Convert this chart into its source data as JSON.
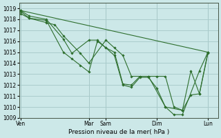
{
  "background_color": "#cce8e8",
  "grid_color": "#aacccc",
  "line_color": "#2d6e2d",
  "marker_color": "#2d6e2d",
  "xlabel": "Pression niveau de la mer( hPa )",
  "ylim": [
    1009,
    1019.5
  ],
  "yticks": [
    1009,
    1010,
    1011,
    1012,
    1013,
    1014,
    1015,
    1016,
    1017,
    1018,
    1019
  ],
  "xtick_labels": [
    "Ven",
    "Mar",
    "Sam",
    "Dim",
    "Lun"
  ],
  "xtick_positions": [
    0.0,
    4.0,
    5.0,
    8.0,
    11.0
  ],
  "xlim": [
    -0.1,
    11.6
  ],
  "lines": [
    {
      "x": [
        0.0,
        11.0
      ],
      "y": [
        1018.8,
        1015.0
      ]
    },
    {
      "x": [
        0.0,
        0.5,
        1.5,
        2.5,
        3.0,
        4.0,
        4.5,
        5.0,
        5.5,
        6.0,
        6.5,
        7.0,
        7.5,
        8.0,
        8.5,
        9.0,
        9.5,
        10.0,
        10.5,
        11.0
      ],
      "y": [
        1018.8,
        1018.3,
        1018.0,
        1016.2,
        1014.9,
        1016.1,
        1016.1,
        1015.4,
        1015.0,
        1012.1,
        1012.0,
        1012.8,
        1012.8,
        1012.8,
        1012.8,
        1010.0,
        1009.7,
        1011.1,
        1011.2,
        1014.9
      ]
    },
    {
      "x": [
        0.0,
        0.5,
        1.5,
        2.5,
        3.0,
        3.5,
        4.0,
        4.5,
        5.0,
        5.5,
        6.0,
        6.5,
        7.0,
        7.5,
        8.0,
        8.5,
        9.0,
        9.5,
        10.5,
        11.0
      ],
      "y": [
        1018.5,
        1018.1,
        1017.9,
        1015.0,
        1014.4,
        1013.8,
        1013.2,
        1016.0,
        1015.4,
        1014.7,
        1012.0,
        1011.8,
        1012.7,
        1012.7,
        1011.7,
        1010.0,
        1009.3,
        1009.3,
        1013.3,
        1015.0
      ]
    },
    {
      "x": [
        0.0,
        0.5,
        1.5,
        2.0,
        2.5,
        3.5,
        4.0,
        5.0,
        5.5,
        6.0,
        6.5,
        7.5,
        8.5,
        9.5,
        10.0,
        10.5,
        11.0
      ],
      "y": [
        1018.7,
        1018.1,
        1017.7,
        1017.5,
        1016.5,
        1014.9,
        1014.0,
        1016.1,
        1015.4,
        1014.7,
        1012.8,
        1012.8,
        1010.0,
        1009.7,
        1013.3,
        1011.2,
        1015.0
      ]
    }
  ]
}
